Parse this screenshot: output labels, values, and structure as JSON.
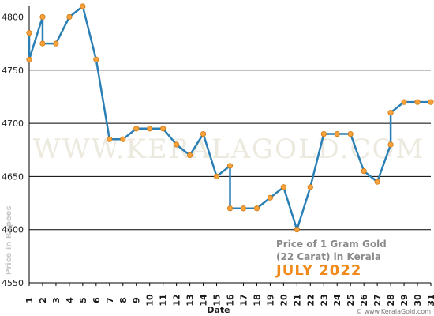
{
  "chart_data": {
    "type": "line",
    "title": "",
    "xlabel": "Date",
    "ylabel": "Price in Rupees",
    "caption_line1": "Price of 1 Gram Gold",
    "caption_line2": "(22 Carat) in Kerala",
    "month_label": "JULY 2022",
    "watermark": "WWW.KERALAGOLD.COM",
    "credit": "© www.KeralaGold.com",
    "ylim": [
      4550,
      4810
    ],
    "yticks": [
      4550,
      4600,
      4650,
      4700,
      4750,
      4800
    ],
    "x_ticks": [
      "1",
      "2",
      "3",
      "4",
      "5",
      "6",
      "7",
      "8",
      "9",
      "10",
      "11",
      "12",
      "13",
      "14",
      "15",
      "16",
      "17",
      "18",
      "19",
      "20",
      "21",
      "22",
      "23",
      "24",
      "25",
      "26",
      "27",
      "28",
      "29",
      "30",
      "31"
    ],
    "x_range": [
      1,
      31
    ],
    "grid": true,
    "line_color": "#2a7fb5",
    "marker_color": "#f7a23c",
    "marker_edge": "#d07810",
    "series": [
      {
        "points": [
          [
            1,
            4785
          ],
          [
            1,
            4760
          ],
          [
            2,
            4800
          ],
          [
            2,
            4775
          ],
          [
            3,
            4775
          ],
          [
            4,
            4800
          ],
          [
            5,
            4810
          ],
          [
            6,
            4760
          ],
          [
            7,
            4685
          ],
          [
            8,
            4685
          ],
          [
            9,
            4695
          ],
          [
            10,
            4695
          ],
          [
            11,
            4695
          ],
          [
            12,
            4680
          ],
          [
            13,
            4670
          ],
          [
            14,
            4690
          ],
          [
            15,
            4650
          ],
          [
            16,
            4660
          ],
          [
            16,
            4620
          ],
          [
            17,
            4620
          ],
          [
            18,
            4620
          ],
          [
            19,
            4630
          ],
          [
            20,
            4640
          ],
          [
            21,
            4600
          ],
          [
            22,
            4640
          ],
          [
            23,
            4690
          ],
          [
            24,
            4690
          ],
          [
            25,
            4690
          ],
          [
            26,
            4655
          ],
          [
            27,
            4645
          ],
          [
            28,
            4680
          ],
          [
            28,
            4710
          ],
          [
            29,
            4720
          ],
          [
            30,
            4720
          ],
          [
            31,
            4720
          ]
        ]
      }
    ]
  }
}
